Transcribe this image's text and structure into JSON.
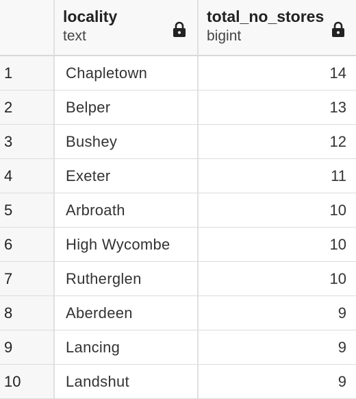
{
  "columns": [
    {
      "name": "locality",
      "type": "text",
      "icon": "lock-icon"
    },
    {
      "name": "total_no_stores",
      "type": "bigint",
      "icon": "lock-icon"
    }
  ],
  "rows": [
    {
      "n": "1",
      "locality": "Chapletown",
      "total": "14"
    },
    {
      "n": "2",
      "locality": "Belper",
      "total": "13"
    },
    {
      "n": "3",
      "locality": "Bushey",
      "total": "12"
    },
    {
      "n": "4",
      "locality": "Exeter",
      "total": "11"
    },
    {
      "n": "5",
      "locality": "Arbroath",
      "total": "10"
    },
    {
      "n": "6",
      "locality": "High Wycombe",
      "total": "10"
    },
    {
      "n": "7",
      "locality": "Rutherglen",
      "total": "10"
    },
    {
      "n": "8",
      "locality": "Aberdeen",
      "total": "9"
    },
    {
      "n": "9",
      "locality": "Lancing",
      "total": "9"
    },
    {
      "n": "10",
      "locality": "Landshut",
      "total": "9"
    }
  ]
}
